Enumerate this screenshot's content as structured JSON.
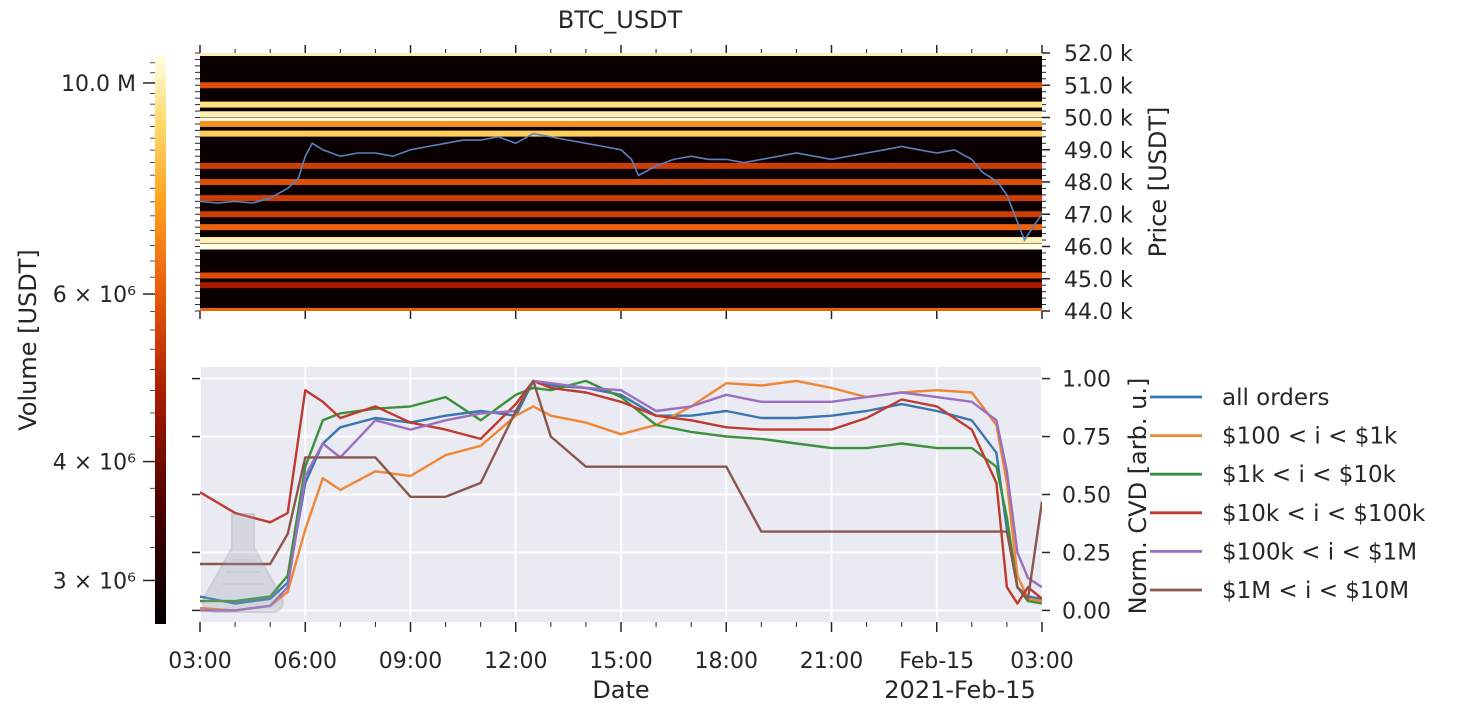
{
  "title": "BTC_USDT",
  "colorbar": {
    "label": "Volume [USDT]",
    "ticks": [
      {
        "value": 10000000,
        "label": "10.0 M"
      },
      {
        "value": 6000000,
        "label": "6 × 10⁶"
      },
      {
        "value": 4000000,
        "label": "4 × 10⁶"
      },
      {
        "value": 3000000,
        "label": "3 × 10⁶"
      }
    ],
    "scale": "log",
    "range": [
      2700000,
      10700000
    ],
    "colormap": "afmhot"
  },
  "chart_data": [
    {
      "type": "heatmap",
      "title": "BTC_USDT",
      "ylabel": "Price [USDT]",
      "ylim": [
        44000,
        52000
      ],
      "yticks": [
        "44.0 k",
        "45.0 k",
        "46.0 k",
        "47.0 k",
        "48.0 k",
        "49.0 k",
        "50.0 k",
        "51.0 k",
        "52.0 k"
      ],
      "description_of_series": "Order-book volume heatmap with BTC price line overlay",
      "bands": [
        {
          "price": 52000,
          "intensity": 0.95
        },
        {
          "price": 51000,
          "intensity": 0.55
        },
        {
          "price": 50400,
          "intensity": 0.9
        },
        {
          "price": 50100,
          "intensity": 0.95
        },
        {
          "price": 49900,
          "intensity": 1.0
        },
        {
          "price": 49800,
          "intensity": 0.7
        },
        {
          "price": 49500,
          "intensity": 0.85
        },
        {
          "price": 48500,
          "intensity": 0.5
        },
        {
          "price": 48000,
          "intensity": 0.55
        },
        {
          "price": 47500,
          "intensity": 0.5
        },
        {
          "price": 47000,
          "intensity": 0.5
        },
        {
          "price": 46600,
          "intensity": 0.6
        },
        {
          "price": 46200,
          "intensity": 0.95
        },
        {
          "price": 46000,
          "intensity": 1.0
        },
        {
          "price": 45100,
          "intensity": 0.55
        },
        {
          "price": 44800,
          "intensity": 0.4
        },
        {
          "price": 44000,
          "intensity": 0.6
        }
      ],
      "price_line": {
        "color": "#5b7fbf",
        "x_hours": [
          3.0,
          3.5,
          4.0,
          4.5,
          5.0,
          5.5,
          5.8,
          6.0,
          6.2,
          6.5,
          7.0,
          7.5,
          8.0,
          8.5,
          9.0,
          9.5,
          10.0,
          10.5,
          11.0,
          11.5,
          12.0,
          12.5,
          13.0,
          13.5,
          14.0,
          14.5,
          15.0,
          15.3,
          15.5,
          16.0,
          16.5,
          17.0,
          17.5,
          18.0,
          18.5,
          19.0,
          19.5,
          20.0,
          20.5,
          21.0,
          21.5,
          22.0,
          22.5,
          23.0,
          23.5,
          24.0,
          24.5,
          25.0,
          25.3,
          25.6,
          25.8,
          26.0,
          26.5,
          26.8,
          27.0
        ],
        "y_price": [
          47400,
          47350,
          47400,
          47350,
          47500,
          47800,
          48100,
          48800,
          49200,
          49000,
          48800,
          48900,
          48900,
          48800,
          49000,
          49100,
          49200,
          49300,
          49300,
          49400,
          49200,
          49500,
          49400,
          49300,
          49200,
          49100,
          49000,
          48700,
          48200,
          48500,
          48700,
          48800,
          48700,
          48700,
          48600,
          48700,
          48800,
          48900,
          48800,
          48700,
          48800,
          48900,
          49000,
          49100,
          49000,
          48900,
          49000,
          48700,
          48300,
          48100,
          47900,
          47600,
          46200,
          46700,
          47000
        ]
      }
    },
    {
      "type": "line",
      "xlabel": "Date",
      "ylabel": "Norm. CVD [arb. u.]",
      "ylim": [
        -0.05,
        1.05
      ],
      "yticks": [
        "0.00",
        "0.25",
        "0.50",
        "0.75",
        "1.00"
      ],
      "xlim_hours": [
        3,
        27
      ],
      "xticks": [
        "03:00",
        "06:00",
        "09:00",
        "12:00",
        "15:00",
        "18:00",
        "21:00",
        "Feb-15",
        "03:00"
      ],
      "x_offset_label": "2021-Feb-15",
      "grid": true,
      "legend": "right",
      "x_hours": [
        3.0,
        4.0,
        5.0,
        5.5,
        6.0,
        6.5,
        7.0,
        8.0,
        9.0,
        10.0,
        11.0,
        12.0,
        12.5,
        13.0,
        14.0,
        15.0,
        16.0,
        17.0,
        18.0,
        19.0,
        20.0,
        21.0,
        22.0,
        23.0,
        24.0,
        25.0,
        25.7,
        26.0,
        26.3,
        26.6,
        27.0
      ],
      "series": [
        {
          "name": "all orders",
          "color": "#3a76af",
          "values": [
            0.06,
            0.03,
            0.05,
            0.12,
            0.55,
            0.72,
            0.79,
            0.83,
            0.81,
            0.84,
            0.86,
            0.84,
            0.99,
            0.97,
            0.96,
            0.93,
            0.84,
            0.84,
            0.86,
            0.83,
            0.83,
            0.84,
            0.86,
            0.89,
            0.86,
            0.82,
            0.68,
            0.35,
            0.1,
            0.06,
            0.05
          ]
        },
        {
          "name": "$100 < i < $1k",
          "color": "#ef8636",
          "values": [
            0.01,
            0.0,
            0.02,
            0.08,
            0.35,
            0.57,
            0.52,
            0.6,
            0.58,
            0.67,
            0.71,
            0.84,
            0.88,
            0.84,
            0.81,
            0.76,
            0.8,
            0.88,
            0.98,
            0.97,
            0.99,
            0.96,
            0.92,
            0.94,
            0.95,
            0.94,
            0.8,
            0.55,
            0.15,
            0.05,
            0.04
          ]
        },
        {
          "name": "$1k < i < $10k",
          "color": "#3b923b",
          "values": [
            0.04,
            0.04,
            0.06,
            0.15,
            0.62,
            0.82,
            0.85,
            0.87,
            0.88,
            0.92,
            0.82,
            0.93,
            0.96,
            0.95,
            0.99,
            0.92,
            0.8,
            0.77,
            0.75,
            0.74,
            0.72,
            0.7,
            0.7,
            0.72,
            0.7,
            0.7,
            0.62,
            0.4,
            0.1,
            0.04,
            0.03
          ]
        },
        {
          "name": "$10k < i < $100k",
          "color": "#c03a30",
          "values": [
            0.51,
            0.42,
            0.38,
            0.42,
            0.95,
            0.9,
            0.83,
            0.88,
            0.81,
            0.78,
            0.74,
            0.89,
            0.99,
            0.96,
            0.94,
            0.9,
            0.84,
            0.82,
            0.79,
            0.78,
            0.78,
            0.78,
            0.83,
            0.91,
            0.88,
            0.78,
            0.55,
            0.1,
            0.03,
            0.1,
            0.05
          ]
        },
        {
          "name": "$100k < i < $1M",
          "color": "#9a6fc0",
          "values": [
            0.0,
            0.0,
            0.02,
            0.1,
            0.58,
            0.72,
            0.66,
            0.82,
            0.78,
            0.82,
            0.85,
            0.86,
            0.99,
            0.98,
            0.96,
            0.95,
            0.86,
            0.88,
            0.93,
            0.9,
            0.9,
            0.9,
            0.92,
            0.94,
            0.92,
            0.9,
            0.82,
            0.6,
            0.25,
            0.14,
            0.1
          ]
        },
        {
          "name": "$1M < i < $10M",
          "color": "#8b564c",
          "values": [
            0.2,
            0.2,
            0.2,
            0.33,
            0.66,
            0.66,
            0.66,
            0.66,
            0.49,
            0.49,
            0.55,
            0.86,
            0.99,
            0.75,
            0.62,
            0.62,
            0.62,
            0.62,
            0.62,
            0.34,
            0.34,
            0.34,
            0.34,
            0.34,
            0.34,
            0.34,
            0.34,
            0.34,
            0.1,
            0.05,
            0.47
          ]
        }
      ]
    }
  ]
}
